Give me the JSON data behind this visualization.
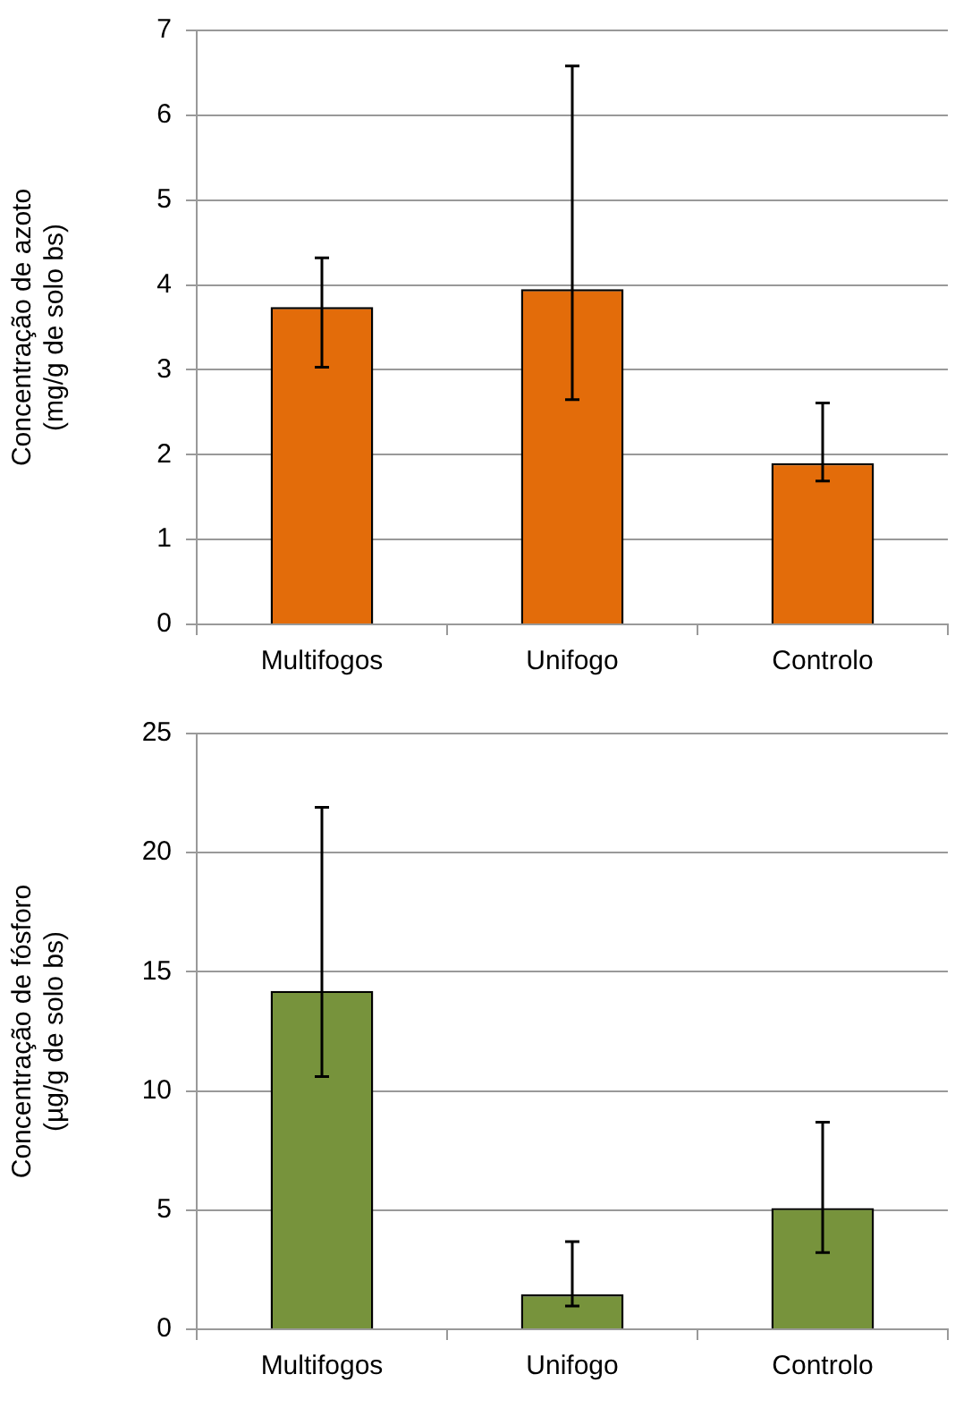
{
  "chart_data": [
    {
      "type": "bar",
      "categories": [
        "Multifogos",
        "Unifogo",
        "Controlo"
      ],
      "ylabel": "Concentração de azoto\n(mg/g de solo bs)",
      "color": "#e36c0a",
      "values": [
        3.74,
        3.95,
        1.9
      ],
      "errors": [
        [
          3.03,
          4.32
        ],
        [
          2.65,
          6.58
        ],
        [
          1.69,
          2.61
        ]
      ],
      "ylim": [
        0,
        7
      ],
      "yticks": [
        0,
        1,
        2,
        3,
        4,
        5,
        6,
        7
      ],
      "grid": "y",
      "legend": false
    },
    {
      "type": "bar",
      "categories": [
        "Multifogos",
        "Unifogo",
        "Controlo"
      ],
      "ylabel": "Concentração de fósforo\n(µg/g de solo bs)",
      "color": "#77933c",
      "values": [
        14.2,
        1.46,
        5.09
      ],
      "errors": [
        [
          10.6,
          21.9
        ],
        [
          0.98,
          3.68
        ],
        [
          3.22,
          8.69
        ]
      ],
      "ylim": [
        0,
        25
      ],
      "yticks": [
        0,
        5,
        10,
        15,
        20,
        25
      ],
      "grid": "y",
      "legend": false
    }
  ]
}
